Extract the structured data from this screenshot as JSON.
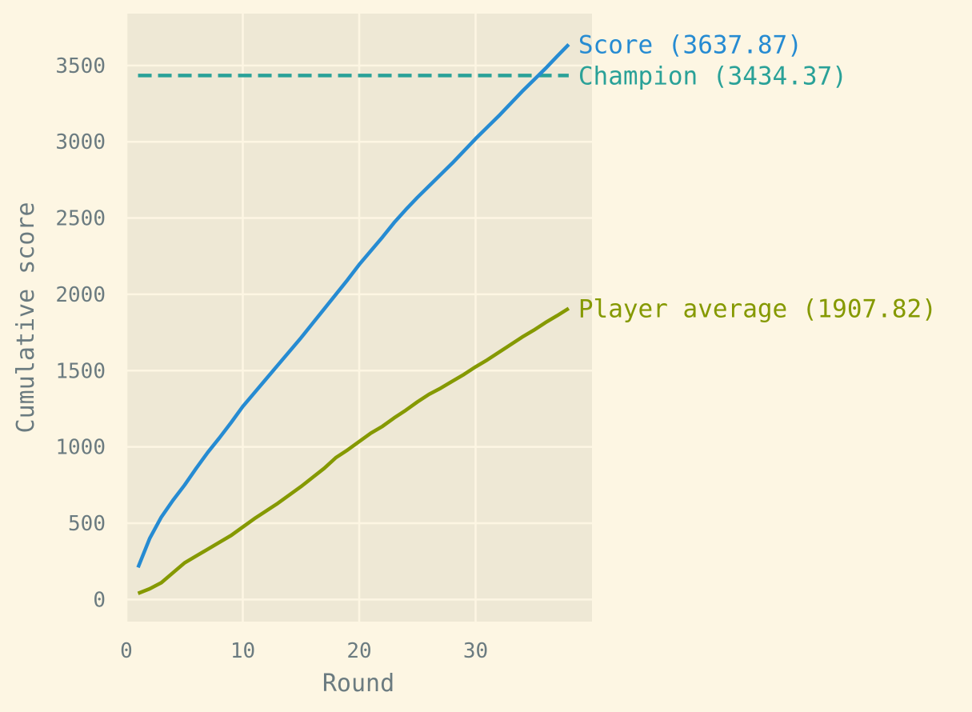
{
  "chart_data": {
    "type": "line",
    "title": "",
    "xlabel": "Round",
    "ylabel": "Cumulative score",
    "xlim": [
      0,
      40
    ],
    "ylim": [
      -145,
      3840
    ],
    "xticks": [
      0,
      10,
      20,
      30
    ],
    "yticks": [
      0,
      500,
      1000,
      1500,
      2000,
      2500,
      3000,
      3500
    ],
    "grid": true,
    "x": [
      1,
      2,
      3,
      4,
      5,
      6,
      7,
      8,
      9,
      10,
      11,
      12,
      13,
      14,
      15,
      16,
      17,
      18,
      19,
      20,
      21,
      22,
      23,
      24,
      25,
      26,
      27,
      28,
      29,
      30,
      31,
      32,
      33,
      34,
      35,
      36,
      37,
      38
    ],
    "series": [
      {
        "key": "score",
        "label": "Score (3637.87)",
        "color": "#268bd2",
        "values": [
          210,
          400,
          540,
          650,
          750,
          860,
          965,
          1060,
          1160,
          1265,
          1355,
          1445,
          1535,
          1625,
          1715,
          1810,
          1905,
          2000,
          2095,
          2195,
          2285,
          2375,
          2470,
          2555,
          2635,
          2710,
          2785,
          2860,
          2940,
          3020,
          3095,
          3170,
          3250,
          3330,
          3405,
          3480,
          3560,
          3637.87
        ]
      },
      {
        "key": "player_average",
        "label": "Player average (1907.82)",
        "color": "#859900",
        "values": [
          40,
          70,
          110,
          175,
          240,
          285,
          330,
          375,
          420,
          475,
          530,
          580,
          630,
          685,
          740,
          800,
          860,
          930,
          980,
          1035,
          1090,
          1135,
          1190,
          1240,
          1295,
          1345,
          1385,
          1430,
          1475,
          1525,
          1570,
          1620,
          1670,
          1720,
          1765,
          1815,
          1860,
          1907.82
        ]
      }
    ],
    "reference_lines": [
      {
        "key": "champion",
        "label": "Champion (3434.37)",
        "color": "#2aa198",
        "y": 3434.37,
        "x_range": [
          1,
          38
        ],
        "style": "dashed"
      }
    ]
  }
}
